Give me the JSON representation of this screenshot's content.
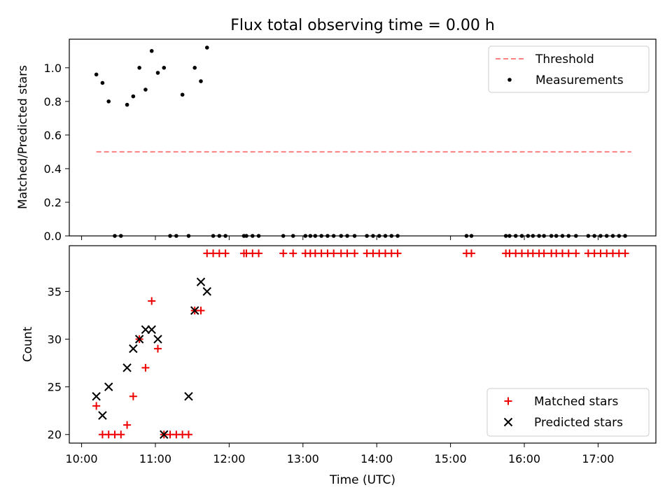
{
  "figure": {
    "title": "Flux total observing time = 0.00 h"
  },
  "colors": {
    "threshold": "#ff8080",
    "measurement": "#000000",
    "matched": "#ee0000",
    "predicted": "#000000"
  },
  "chart_data": [
    {
      "type": "scatter",
      "panel": "top",
      "ylabel": "Matched/Predicted stars",
      "xlabel": "",
      "xlim": [
        "09:50",
        "17:47"
      ],
      "ylim": [
        0,
        1.17
      ],
      "yticks": [
        0.0,
        0.2,
        0.4,
        0.6,
        0.8,
        1.0
      ],
      "ytick_labels": [
        "0.0",
        "0.2",
        "0.4",
        "0.6",
        "0.8",
        "1.0"
      ],
      "grid": false,
      "legend": {
        "placement": "top-right",
        "entries": [
          "Threshold",
          "Measurements"
        ]
      },
      "series": [
        {
          "name": "Threshold",
          "kind": "dashed-line",
          "x": [
            "10:12",
            "17:27"
          ],
          "y": [
            0.5,
            0.5
          ]
        },
        {
          "name": "Measurements",
          "kind": "dot",
          "x": [
            "10:12",
            "10:17",
            "10:22",
            "10:27",
            "10:32",
            "10:37",
            "10:42",
            "10:47",
            "10:52",
            "10:57",
            "11:02",
            "11:07",
            "11:12",
            "11:17",
            "11:22",
            "11:27",
            "11:32",
            "11:37",
            "11:42",
            "11:47",
            "11:52",
            "11:57",
            "12:12",
            "12:14",
            "12:19",
            "12:24",
            "12:44",
            "12:52",
            "13:02",
            "13:06",
            "13:10",
            "13:15",
            "13:20",
            "13:25",
            "13:31",
            "13:36",
            "13:42",
            "13:52",
            "13:57",
            "14:02",
            "14:07",
            "14:12",
            "14:17",
            "15:13",
            "15:17",
            "15:45",
            "15:48",
            "15:53",
            "15:58",
            "16:03",
            "16:07",
            "16:12",
            "16:16",
            "16:22",
            "16:26",
            "16:31",
            "16:36",
            "16:42",
            "16:52",
            "16:57",
            "17:02",
            "17:07",
            "17:12",
            "17:17",
            "17:22"
          ],
          "y": [
            0.96,
            0.91,
            0.8,
            0.0,
            0.0,
            0.78,
            0.83,
            1.0,
            0.87,
            1.1,
            0.97,
            1.0,
            0.0,
            0.0,
            0.84,
            0.0,
            1.0,
            0.92,
            1.12,
            0.0,
            0.0,
            0.0,
            0.0,
            0.0,
            0.0,
            0.0,
            0.0,
            0.0,
            0.0,
            0.0,
            0.0,
            0.0,
            0.0,
            0.0,
            0.0,
            0.0,
            0.0,
            0.0,
            0.0,
            0.0,
            0.0,
            0.0,
            0.0,
            0.0,
            0.0,
            0.0,
            0.0,
            0.0,
            0.0,
            0.0,
            0.0,
            0.0,
            0.0,
            0.0,
            0.0,
            0.0,
            0.0,
            0.0,
            0.0,
            0.0,
            0.0,
            0.0,
            0.0,
            0.0,
            0.0
          ]
        }
      ]
    },
    {
      "type": "scatter",
      "panel": "bottom",
      "ylabel": "Count",
      "xlabel": "Time (UTC)",
      "xlim": [
        "09:50",
        "17:47"
      ],
      "ylim": [
        19.1,
        39.8
      ],
      "xticks": [
        "10:00",
        "11:00",
        "12:00",
        "13:00",
        "14:00",
        "15:00",
        "16:00",
        "17:00"
      ],
      "yticks": [
        20,
        25,
        30,
        35
      ],
      "ytick_labels": [
        "20",
        "25",
        "30",
        "35"
      ],
      "grid": false,
      "legend": {
        "placement": "bottom-right",
        "entries": [
          "Matched stars",
          "Predicted stars"
        ]
      },
      "series": [
        {
          "name": "Matched stars",
          "kind": "plus",
          "x": [
            "10:12",
            "10:17",
            "10:22",
            "10:27",
            "10:32",
            "10:37",
            "10:42",
            "10:47",
            "10:52",
            "10:57",
            "11:02",
            "11:07",
            "11:12",
            "11:17",
            "11:22",
            "11:27",
            "11:32",
            "11:37",
            "11:42",
            "11:47",
            "11:52",
            "11:57",
            "12:12",
            "12:14",
            "12:19",
            "12:24",
            "12:44",
            "12:52",
            "13:02",
            "13:06",
            "13:10",
            "13:15",
            "13:20",
            "13:25",
            "13:31",
            "13:36",
            "13:42",
            "13:52",
            "13:57",
            "14:02",
            "14:07",
            "14:12",
            "14:17",
            "15:13",
            "15:17",
            "15:45",
            "15:48",
            "15:53",
            "15:58",
            "16:03",
            "16:07",
            "16:12",
            "16:16",
            "16:22",
            "16:26",
            "16:31",
            "16:36",
            "16:42",
            "16:52",
            "16:57",
            "17:02",
            "17:07",
            "17:12",
            "17:17",
            "17:22"
          ],
          "y": [
            23,
            20,
            20,
            20,
            20,
            21,
            24,
            30,
            27,
            34,
            29,
            20,
            20,
            20,
            20,
            20,
            33,
            33,
            39,
            39,
            39,
            39,
            39,
            39,
            39,
            39,
            39,
            39,
            39,
            39,
            39,
            39,
            39,
            39,
            39,
            39,
            39,
            39,
            39,
            39,
            39,
            39,
            39,
            39,
            39,
            39,
            39,
            39,
            39,
            39,
            39,
            39,
            39,
            39,
            39,
            39,
            39,
            39,
            39,
            39,
            39,
            39,
            39,
            39,
            39
          ]
        },
        {
          "name": "Predicted stars",
          "kind": "x",
          "x": [
            "10:12",
            "10:17",
            "10:22",
            "10:37",
            "10:42",
            "10:47",
            "10:52",
            "10:57",
            "11:02",
            "11:07",
            "11:27",
            "11:32",
            "11:37",
            "11:42"
          ],
          "y": [
            24,
            22,
            25,
            27,
            29,
            30,
            31,
            31,
            30,
            20,
            24,
            33,
            36,
            35
          ]
        }
      ]
    }
  ]
}
